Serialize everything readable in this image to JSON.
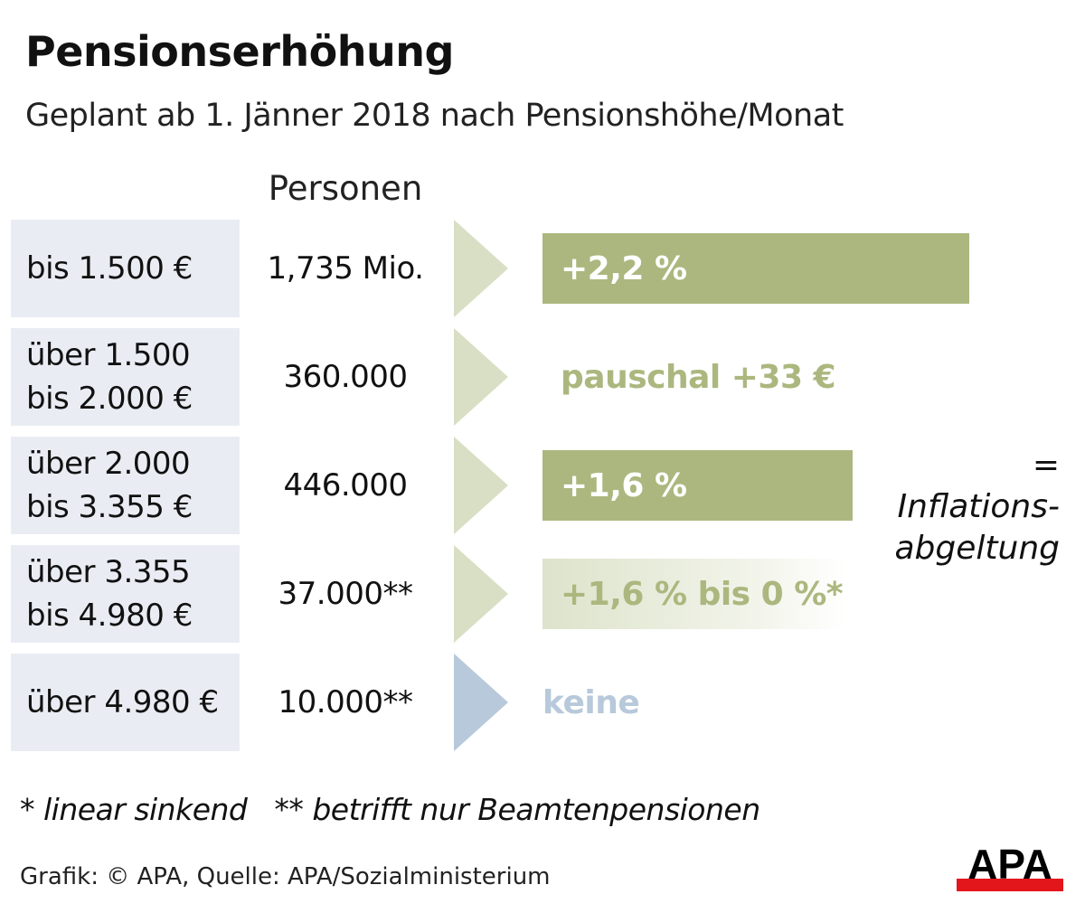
{
  "title": "Pensionserhöhung",
  "subtitle": "Geplant ab 1. Jänner 2018 nach Pensionshöhe/Monat",
  "column_header": "Personen",
  "colors": {
    "bar": "#abb77e",
    "arrow_green": "#d9dfc4",
    "arrow_blue": "#b7c9da",
    "label_bg": "#e9edf3",
    "keine": "#b7c9da",
    "apa_red": "#e3161b"
  },
  "rows": [
    {
      "range": "bis 1.500 €",
      "persons": "1,735 Mio.",
      "increase": "+2,2 %"
    },
    {
      "range": "über 1.500\nbis 2.000 €",
      "persons": "360.000",
      "increase": "pauschal +33 €"
    },
    {
      "range": "über 2.000\nbis 3.355 €",
      "persons": "446.000",
      "increase": "+1,6 %"
    },
    {
      "range": "über 3.355\nbis 4.980 €",
      "persons": "37.000**",
      "increase": "+1,6 % bis 0 %*"
    },
    {
      "range": "über 4.980 €",
      "persons": "10.000**",
      "increase": "keine"
    }
  ],
  "note": "= Inflations-\nabgeltung",
  "footnote": "* linear sinkend   ** betrifft nur Beamtenpensionen",
  "source": "Grafik: © APA, Quelle: APA/Sozialministerium",
  "logo_text": "APA",
  "chart_data": {
    "type": "bar",
    "categories": [
      "bis 1.500 €",
      "über 1.500 bis 2.000 €",
      "über 2.000 bis 3.355 €",
      "über 3.355 bis 4.980 €",
      "über 4.980 €"
    ],
    "values_percent": [
      2.2,
      null,
      1.6,
      null,
      0
    ],
    "persons": [
      "1,735 Mio.",
      "360.000",
      "446.000",
      "37.000**",
      "10.000**"
    ],
    "labels": [
      "+2,2 %",
      "pauschal +33 €",
      "+1,6 %",
      "+1,6 % bis 0 %*",
      "keine"
    ]
  }
}
